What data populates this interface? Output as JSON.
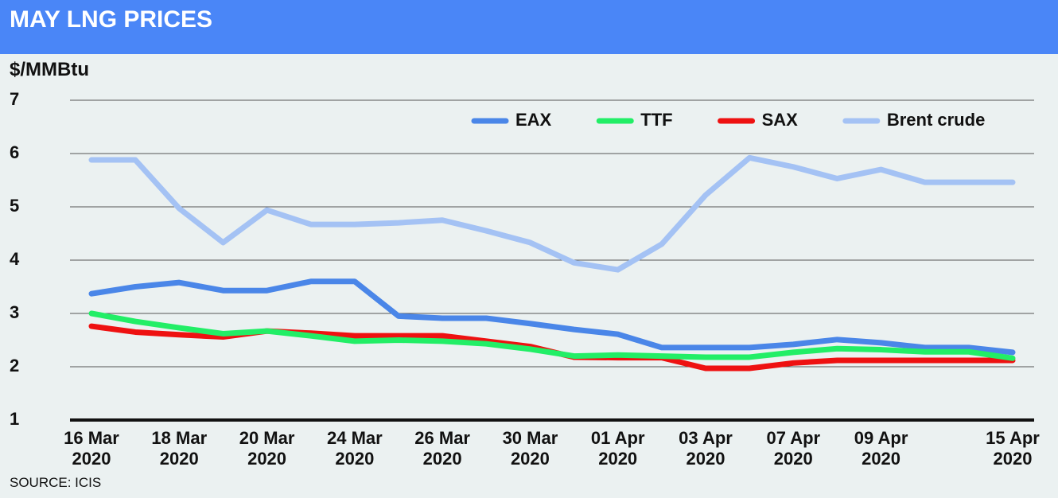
{
  "chart_data": {
    "type": "line",
    "title": "MAY LNG PRICES",
    "y_label": "$/MMBtu",
    "source": "SOURCE: ICIS",
    "categories": [
      "16 Mar 2020",
      null,
      "18 Mar 2020",
      null,
      "20 Mar 2020",
      null,
      "24 Mar 2020",
      null,
      "26 Mar 2020",
      null,
      "30 Mar 2020",
      null,
      "01 Apr 2020",
      null,
      "03 Apr 2020",
      null,
      "07 Apr 2020",
      null,
      "09 Apr 2020",
      null,
      null,
      "15 Apr 2020"
    ],
    "series": [
      {
        "name": "EAX",
        "color": "#4a86e8",
        "values": [
          3.37,
          3.5,
          3.58,
          3.43,
          3.43,
          3.6,
          3.6,
          2.95,
          2.91,
          2.91,
          2.81,
          2.7,
          2.61,
          2.36,
          2.36,
          2.36,
          2.42,
          2.51,
          2.45,
          2.36,
          2.36,
          2.27
        ]
      },
      {
        "name": "TTF",
        "color": "#22ee66",
        "values": [
          3.0,
          2.85,
          2.73,
          2.62,
          2.67,
          2.58,
          2.48,
          2.5,
          2.48,
          2.43,
          2.33,
          2.2,
          2.22,
          2.2,
          2.18,
          2.18,
          2.27,
          2.34,
          2.32,
          2.28,
          2.28,
          2.16
        ]
      },
      {
        "name": "SAX",
        "color": "#ee1111",
        "values": [
          2.76,
          2.65,
          2.6,
          2.56,
          2.67,
          2.63,
          2.58,
          2.58,
          2.58,
          2.48,
          2.38,
          2.18,
          2.17,
          2.17,
          1.97,
          1.97,
          2.07,
          2.12,
          2.12,
          2.12,
          2.12,
          2.12
        ]
      },
      {
        "name": "Brent crude",
        "color": "#a4c2f4",
        "values": [
          5.88,
          5.88,
          4.97,
          4.33,
          4.94,
          4.67,
          4.67,
          4.7,
          4.75,
          4.55,
          4.33,
          3.95,
          3.82,
          4.3,
          5.22,
          5.92,
          5.75,
          5.53,
          5.7,
          5.46,
          5.46,
          5.46
        ]
      }
    ],
    "draw_order": [
      3,
      0,
      2,
      1
    ],
    "ylim": [
      1,
      7
    ],
    "yticks": [
      1,
      2,
      3,
      4,
      5,
      6,
      7
    ],
    "grid": true,
    "legend": "top-right"
  }
}
